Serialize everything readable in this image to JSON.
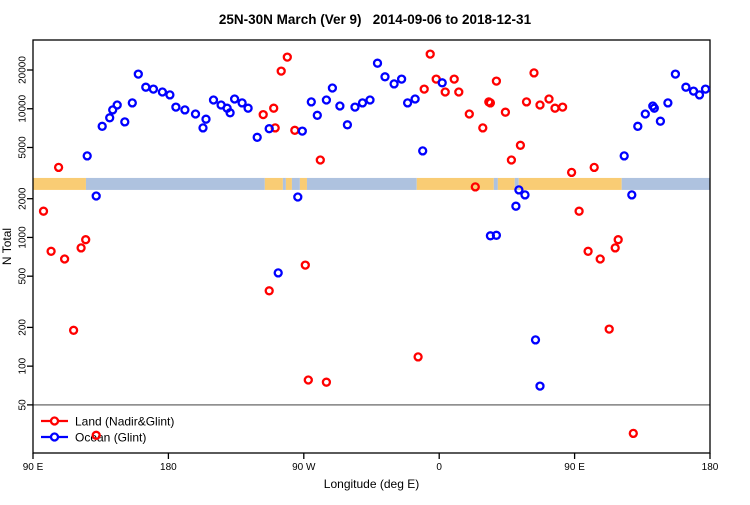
{
  "title": "25N-30N March (Ver 9)   2014-09-06 to 2018-12-31",
  "colors": {
    "land": "#FF0000",
    "ocean": "#0000FF",
    "strip_land": "#F9CC74",
    "strip_ocean": "#AEC2DF",
    "refline": "#808080",
    "axis": "#000000"
  },
  "axes": {
    "x": {
      "label": "Longitude (deg E)",
      "ticks": [
        {
          "deg": 90,
          "label": "90 E"
        },
        {
          "deg": 180,
          "label": "180"
        },
        {
          "deg": 270,
          "label": "90 W"
        },
        {
          "deg": 360,
          "label": "0"
        },
        {
          "deg": 450,
          "label": "90 E"
        },
        {
          "deg": 540,
          "label": "180"
        }
      ]
    },
    "y": {
      "label": "N Total",
      "scale": "log",
      "ticks": [
        50,
        100,
        200,
        500,
        1000,
        2000,
        5000,
        10000,
        20000
      ]
    }
  },
  "refline_n": 50,
  "strip": {
    "description": "land/ocean latitude-band strip drawn across the plot",
    "n_range": [
      2340,
      2900
    ],
    "segments": [
      {
        "type": "land",
        "from_deg": 90.0,
        "to_deg": 125.2
      },
      {
        "type": "ocean",
        "from_deg": 125.2,
        "to_deg": 244.1
      },
      {
        "type": "land",
        "from_deg": 244.1,
        "to_deg": 256.1
      },
      {
        "type": "ocean",
        "from_deg": 256.1,
        "to_deg": 258.1
      },
      {
        "type": "land",
        "from_deg": 258.1,
        "to_deg": 262.1
      },
      {
        "type": "ocean",
        "from_deg": 262.1,
        "to_deg": 267.4
      },
      {
        "type": "land",
        "from_deg": 267.4,
        "to_deg": 272.1
      },
      {
        "type": "ocean",
        "from_deg": 272.1,
        "to_deg": 345.1
      },
      {
        "type": "land",
        "from_deg": 345.1,
        "to_deg": 396.3
      },
      {
        "type": "ocean",
        "from_deg": 396.3,
        "to_deg": 399.0
      },
      {
        "type": "land",
        "from_deg": 399.0,
        "to_deg": 410.2
      },
      {
        "type": "ocean",
        "from_deg": 410.2,
        "to_deg": 412.9
      },
      {
        "type": "land",
        "from_deg": 412.9,
        "to_deg": 481.3
      },
      {
        "type": "ocean",
        "from_deg": 481.3,
        "to_deg": 540.0
      }
    ]
  },
  "chart_data": {
    "type": "scatter",
    "xlabel": "Longitude (deg E)",
    "ylabel": "N Total",
    "y_log": true,
    "x_range_deg": [
      90,
      540
    ],
    "ylim": [
      21,
      34000
    ],
    "legend_position": "bottom-left",
    "series": [
      {
        "name": "Land (Nadir&Glint)",
        "color": "#FF0000",
        "points": [
          [
            259,
            25200
          ],
          [
            255,
            19600
          ],
          [
            354,
            26600
          ],
          [
            358,
            17000
          ],
          [
            370,
            17000
          ],
          [
            373,
            13500
          ],
          [
            364,
            13500
          ],
          [
            350,
            14200
          ],
          [
            250,
            10100
          ],
          [
            243,
            9000
          ],
          [
            251,
            7100
          ],
          [
            264,
            6800
          ],
          [
            393,
            11300
          ],
          [
            380,
            9100
          ],
          [
            389,
            7100
          ],
          [
            398,
            16400
          ],
          [
            423,
            19000
          ],
          [
            394,
            11100
          ],
          [
            404,
            9400
          ],
          [
            418,
            11300
          ],
          [
            427,
            10700
          ],
          [
            433,
            11900
          ],
          [
            437,
            10100
          ],
          [
            442,
            10300
          ],
          [
            414,
            5200
          ],
          [
            408,
            4000
          ],
          [
            448,
            3200
          ],
          [
            463,
            3500
          ],
          [
            107,
            3500
          ],
          [
            97,
            1600
          ],
          [
            125,
            960
          ],
          [
            122,
            830
          ],
          [
            102,
            780
          ],
          [
            111,
            680
          ],
          [
            271,
            610
          ],
          [
            247,
            385
          ],
          [
            281,
            4000
          ],
          [
            384,
            2470
          ],
          [
            453,
            1600
          ],
          [
            459,
            780
          ],
          [
            467,
            680
          ],
          [
            477,
            830
          ],
          [
            479,
            960
          ],
          [
            117,
            190
          ],
          [
            273,
            78
          ],
          [
            285,
            75
          ],
          [
            346,
            118
          ],
          [
            473,
            194
          ],
          [
            489,
            30
          ],
          [
            132,
            29
          ]
        ]
      },
      {
        "name": "Ocean (Glint)",
        "color": "#0000FF",
        "points": [
          [
            160,
            18600
          ],
          [
            165,
            14700
          ],
          [
            170,
            14200
          ],
          [
            176,
            13500
          ],
          [
            181,
            12800
          ],
          [
            146,
            10700
          ],
          [
            156,
            11100
          ],
          [
            143,
            9800
          ],
          [
            185,
            10300
          ],
          [
            191,
            9800
          ],
          [
            198,
            9100
          ],
          [
            210,
            11700
          ],
          [
            215,
            10700
          ],
          [
            219,
            10100
          ],
          [
            224,
            11900
          ],
          [
            229,
            11100
          ],
          [
            233,
            10100
          ],
          [
            141,
            8500
          ],
          [
            136,
            7300
          ],
          [
            151,
            7900
          ],
          [
            205,
            8300
          ],
          [
            203,
            7100
          ],
          [
            221,
            9300
          ],
          [
            239,
            6000
          ],
          [
            126,
            4300
          ],
          [
            319,
            22600
          ],
          [
            324,
            17700
          ],
          [
            330,
            15600
          ],
          [
            335,
            17000
          ],
          [
            362,
            15900
          ],
          [
            289,
            14500
          ],
          [
            285,
            11700
          ],
          [
            275,
            11300
          ],
          [
            294,
            10500
          ],
          [
            314,
            11700
          ],
          [
            309,
            11100
          ],
          [
            304,
            10300
          ],
          [
            339,
            11100
          ],
          [
            344,
            11900
          ],
          [
            279,
            8900
          ],
          [
            269,
            6700
          ],
          [
            247,
            7000
          ],
          [
            299,
            7500
          ],
          [
            349,
            4700
          ],
          [
            517,
            18600
          ],
          [
            524,
            14700
          ],
          [
            529,
            13700
          ],
          [
            533,
            12800
          ],
          [
            537,
            14200
          ],
          [
            503,
            10100
          ],
          [
            512,
            11100
          ],
          [
            497,
            9100
          ],
          [
            492,
            7300
          ],
          [
            502,
            10500
          ],
          [
            507,
            8000
          ],
          [
            483,
            4300
          ],
          [
            132,
            2100
          ],
          [
            266,
            2060
          ],
          [
            413,
            2340
          ],
          [
            417,
            2140
          ],
          [
            411,
            1750
          ],
          [
            488,
            2140
          ],
          [
            394,
            1030
          ],
          [
            398,
            1040
          ],
          [
            253,
            530
          ],
          [
            424,
            160
          ],
          [
            427,
            70
          ]
        ]
      }
    ]
  }
}
